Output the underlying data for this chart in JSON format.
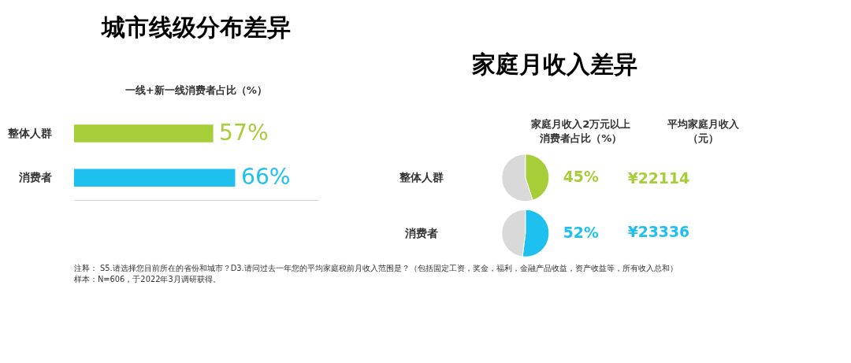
{
  "chart_data": [
    {
      "type": "bar",
      "orientation": "horizontal",
      "title": "城市线级分布差异",
      "subtitle": "一线+新一线消费者占比（%）",
      "categories": [
        "整体人群",
        "消费者"
      ],
      "values": [
        57,
        66
      ],
      "colors": [
        "#a6ce39",
        "#1ec0ef"
      ],
      "xlim": [
        0,
        100
      ],
      "value_labels": [
        "57%",
        "66%"
      ],
      "annotations": [
        "注释：  S5.请选择您目前所在的省份和城市？D3.请问过去一年您的平均家庭税前月收入范围是？（包括固定工资，奖金，福利，金融产品收益，资产收益等，所有收入总和）",
        "样本：N=606，于2022年3月调研获得。"
      ]
    },
    {
      "type": "other",
      "title": "家庭月收入差异",
      "annotations": [
        "家庭月收入2万元以上",
        "消费者占比（%）",
        "平均家庭月收入",
        "（元）"
      ]
    },
    {
      "type": "pie",
      "title": "整体人群",
      "categories": [
        null,
        null
      ],
      "values": [
        45,
        55
      ],
      "colors": [
        "#a6ce39",
        "#d9d9d9"
      ],
      "value_labels": [
        "45%",
        null
      ]
    },
    {
      "type": "pie",
      "title": "消费者",
      "categories": [
        null,
        null
      ],
      "values": [
        52,
        48
      ],
      "colors": [
        "#1ec0ef",
        "#d9d9d9"
      ],
      "value_labels": [
        "52%",
        null
      ]
    },
    {
      "type": "other",
      "annotations": [
        "¥22114",
        "¥23336"
      ],
      "colors": [
        "#a6ce39",
        "#1ec0ef"
      ]
    }
  ]
}
